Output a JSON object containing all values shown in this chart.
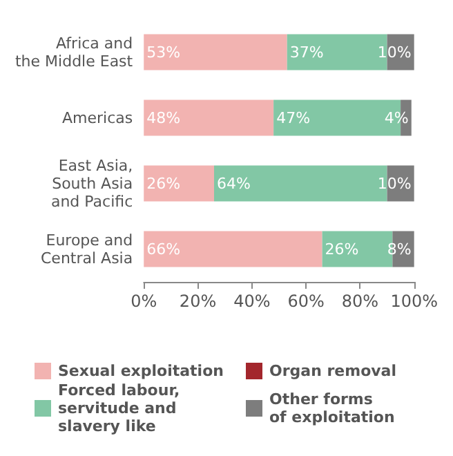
{
  "chart_data": {
    "type": "bar",
    "orientation": "horizontal",
    "stacked": true,
    "legend": "bottom",
    "categories": [
      "Africa and\nthe Middle East",
      "Americas",
      "East Asia,\nSouth Asia\nand Pacific",
      "Europe and\nCentral Asia"
    ],
    "xlim": [
      0,
      100
    ],
    "xticks": [
      {
        "value": 0,
        "label": "0%"
      },
      {
        "value": 20,
        "label": "20%"
      },
      {
        "value": 40,
        "label": "40%"
      },
      {
        "value": 60,
        "label": "60%"
      },
      {
        "value": 80,
        "label": "80%"
      },
      {
        "value": 100,
        "label": "100%"
      }
    ],
    "series": [
      {
        "name": "Sexual exploitation",
        "color": "#f2b3b1",
        "values": [
          53,
          48,
          26,
          66
        ],
        "value_labels": [
          "53%",
          "48%",
          "26%",
          "66%"
        ]
      },
      {
        "name": "Organ removal",
        "color": "#a3262c",
        "values": [
          0,
          0,
          0,
          0
        ],
        "value_labels": [
          null,
          null,
          null,
          null
        ]
      },
      {
        "name": "Forced labour,\nservitude and\nslavery like",
        "color": "#82c7a5",
        "values": [
          37,
          47,
          64,
          26
        ],
        "value_labels": [
          "37%",
          "47%",
          "64%",
          "26%"
        ]
      },
      {
        "name": "Other forms\nof exploitation",
        "color": "#7d7d7d",
        "values": [
          10,
          4,
          10,
          8
        ],
        "value_labels": [
          "10%",
          "4%",
          "10%",
          "8%"
        ]
      }
    ]
  }
}
